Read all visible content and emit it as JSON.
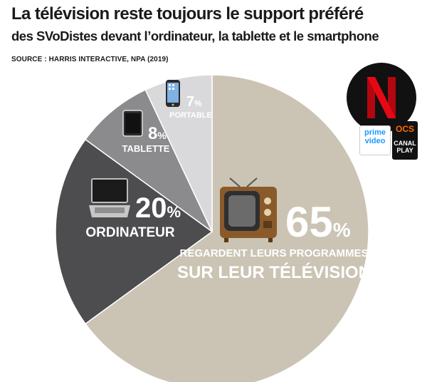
{
  "title": "La télévision reste toujours le support préféré",
  "subtitle": "des SVoDistes devant l’ordinateur, la tablette et le smartphone",
  "source": "SOURCE : HARRIS INTERACTIVE, NPA (2019)",
  "chart_data": {
    "type": "pie",
    "title": "La télévision reste toujours le support préféré",
    "slices": [
      {
        "label": "REGARDENT LEURS PROGRAMMES",
        "label2": "SUR LEUR TÉLÉVISION",
        "value": 65,
        "color": "#cbc4b4",
        "icon": "television-icon"
      },
      {
        "label": "ORDINATEUR",
        "value": 20,
        "color": "#4d4d4f",
        "icon": "laptop-icon"
      },
      {
        "label": "TABLETTE",
        "value": 8,
        "color": "#8b8b8d",
        "icon": "tablet-icon"
      },
      {
        "label": "PORTABLE",
        "value": 7,
        "color": "#d9d9db",
        "icon": "smartphone-icon"
      }
    ],
    "unit": "%"
  },
  "brands": {
    "prime_line1": "prime",
    "prime_line2": "video",
    "ocs_line1": "OCS",
    "ocs_line2": "CANAL",
    "ocs_line3": "PLAY"
  }
}
